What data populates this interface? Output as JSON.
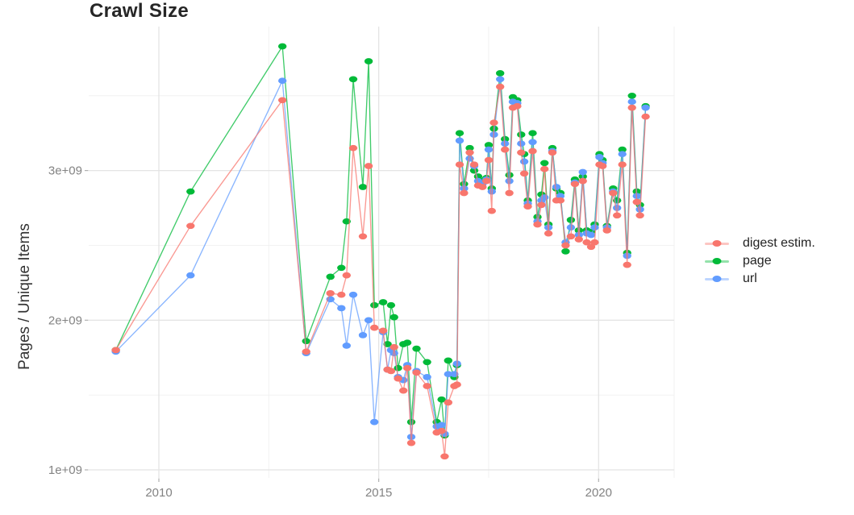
{
  "chart_data": {
    "type": "line",
    "title": "Crawl Size",
    "xlabel": "",
    "ylabel": "Pages / Unique Items",
    "values_unit": "items (absolute count)",
    "grid": true,
    "legend_position": "right",
    "xlim": [
      2008.4,
      2021.72
    ],
    "ylim": [
      950000000.0,
      3960000000.0
    ],
    "x_ticks": {
      "values": [
        2010,
        2015,
        2020
      ],
      "labels": [
        "2010",
        "2015",
        "2020"
      ]
    },
    "y_ticks": {
      "values": [
        1000000000.0,
        2000000000.0,
        3000000000.0
      ],
      "labels": [
        "1e+09",
        "2e+09",
        "3e+09"
      ]
    },
    "x_minor_gridlines": [
      2012.5,
      2017.5,
      2021.72
    ],
    "y_minor_gridlines": [
      1500000000.0,
      2500000000.0,
      3500000000.0
    ],
    "x": [
      2009.02,
      2010.72,
      2012.81,
      2013.35,
      2013.9,
      2014.15,
      2014.27,
      2014.42,
      2014.64,
      2014.77,
      2014.9,
      2015.1,
      2015.2,
      2015.28,
      2015.35,
      2015.44,
      2015.56,
      2015.65,
      2015.74,
      2015.86,
      2016.1,
      2016.32,
      2016.43,
      2016.5,
      2016.58,
      2016.72,
      2016.78,
      2016.84,
      2016.94,
      2017.07,
      2017.17,
      2017.26,
      2017.36,
      2017.45,
      2017.5,
      2017.57,
      2017.62,
      2017.76,
      2017.87,
      2017.97,
      2018.05,
      2018.15,
      2018.24,
      2018.31,
      2018.39,
      2018.5,
      2018.61,
      2018.7,
      2018.77,
      2018.86,
      2018.95,
      2019.04,
      2019.13,
      2019.25,
      2019.37,
      2019.46,
      2019.55,
      2019.64,
      2019.73,
      2019.83,
      2019.91,
      2020.02,
      2020.09,
      2020.19,
      2020.33,
      2020.42,
      2020.54,
      2020.65,
      2020.76,
      2020.87,
      2020.94,
      2021.07
    ],
    "series": [
      {
        "name": "digest estim.",
        "color": "#F8766D",
        "values": [
          1800000000.0,
          2630000000.0,
          3470000000.0,
          1790000000.0,
          2180000000.0,
          2170000000.0,
          2300000000.0,
          3150000000.0,
          2560000000.0,
          3030000000.0,
          1950000000.0,
          1930000000.0,
          1670000000.0,
          1660000000.0,
          1820000000.0,
          1610000000.0,
          1530000000.0,
          1680000000.0,
          1180000000.0,
          1650000000.0,
          1560000000.0,
          1250000000.0,
          1260000000.0,
          1090000000.0,
          1450000000.0,
          1560000000.0,
          1570000000.0,
          3040000000.0,
          2850000000.0,
          3120000000.0,
          3040000000.0,
          2900000000.0,
          2890000000.0,
          2930000000.0,
          3070000000.0,
          2730000000.0,
          3320000000.0,
          3560000000.0,
          3140000000.0,
          2850000000.0,
          3420000000.0,
          3430000000.0,
          3120000000.0,
          2980000000.0,
          2760000000.0,
          3130000000.0,
          2640000000.0,
          2770000000.0,
          3010000000.0,
          2580000000.0,
          3120000000.0,
          2800000000.0,
          2800000000.0,
          2500000000.0,
          2560000000.0,
          2910000000.0,
          2540000000.0,
          2930000000.0,
          2520000000.0,
          2490000000.0,
          2520000000.0,
          3040000000.0,
          3030000000.0,
          2600000000.0,
          2850000000.0,
          2700000000.0,
          3040000000.0,
          2370000000.0,
          3420000000.0,
          2790000000.0,
          2700000000.0,
          3360000000.0
        ]
      },
      {
        "name": "page",
        "color": "#00BA38",
        "values": [
          1800000000.0,
          2860000000.0,
          3830000000.0,
          1860000000.0,
          2290000000.0,
          2350000000.0,
          2660000000.0,
          3610000000.0,
          2890000000.0,
          3730000000.0,
          2100000000.0,
          2120000000.0,
          1840000000.0,
          2100000000.0,
          2020000000.0,
          1680000000.0,
          1840000000.0,
          1850000000.0,
          1320000000.0,
          1810000000.0,
          1720000000.0,
          1320000000.0,
          1470000000.0,
          1230000000.0,
          1730000000.0,
          1620000000.0,
          1700000000.0,
          3250000000.0,
          2910000000.0,
          3150000000.0,
          3000000000.0,
          2960000000.0,
          2930000000.0,
          2950000000.0,
          3170000000.0,
          2880000000.0,
          3280000000.0,
          3650000000.0,
          3210000000.0,
          2970000000.0,
          3490000000.0,
          3470000000.0,
          3240000000.0,
          3110000000.0,
          2800000000.0,
          3250000000.0,
          2690000000.0,
          2840000000.0,
          3050000000.0,
          2640000000.0,
          3150000000.0,
          2880000000.0,
          2850000000.0,
          2460000000.0,
          2670000000.0,
          2940000000.0,
          2600000000.0,
          2960000000.0,
          2600000000.0,
          2590000000.0,
          2640000000.0,
          3110000000.0,
          3070000000.0,
          2630000000.0,
          2880000000.0,
          2800000000.0,
          3140000000.0,
          2450000000.0,
          3500000000.0,
          2860000000.0,
          2770000000.0,
          3430000000.0
        ]
      },
      {
        "name": "url",
        "color": "#619CFF",
        "values": [
          1790000000.0,
          2300000000.0,
          3600000000.0,
          1780000000.0,
          2140000000.0,
          2080000000.0,
          1830000000.0,
          2170000000.0,
          1900000000.0,
          2000000000.0,
          1320000000.0,
          1920000000.0,
          1670000000.0,
          1800000000.0,
          1780000000.0,
          1620000000.0,
          1600000000.0,
          1700000000.0,
          1220000000.0,
          1660000000.0,
          1620000000.0,
          1290000000.0,
          1300000000.0,
          1240000000.0,
          1640000000.0,
          1640000000.0,
          1710000000.0,
          3200000000.0,
          2880000000.0,
          3080000000.0,
          3030000000.0,
          2930000000.0,
          2910000000.0,
          2940000000.0,
          3140000000.0,
          2860000000.0,
          3240000000.0,
          3610000000.0,
          3180000000.0,
          2930000000.0,
          3460000000.0,
          3450000000.0,
          3180000000.0,
          3060000000.0,
          2780000000.0,
          3190000000.0,
          2660000000.0,
          2800000000.0,
          2820000000.0,
          2620000000.0,
          3130000000.0,
          2890000000.0,
          2830000000.0,
          2520000000.0,
          2620000000.0,
          2920000000.0,
          2570000000.0,
          2990000000.0,
          2580000000.0,
          2570000000.0,
          2620000000.0,
          3090000000.0,
          3050000000.0,
          2620000000.0,
          2860000000.0,
          2750000000.0,
          3110000000.0,
          2430000000.0,
          3460000000.0,
          2830000000.0,
          2740000000.0,
          3420000000.0
        ]
      }
    ],
    "style": {
      "major_grid_color": "#e4e4e4",
      "minor_grid_color": "#f0f0f0",
      "tick_color": "#b0b0b0",
      "tick_label_color": "#838383",
      "background": "#ffffff"
    }
  }
}
